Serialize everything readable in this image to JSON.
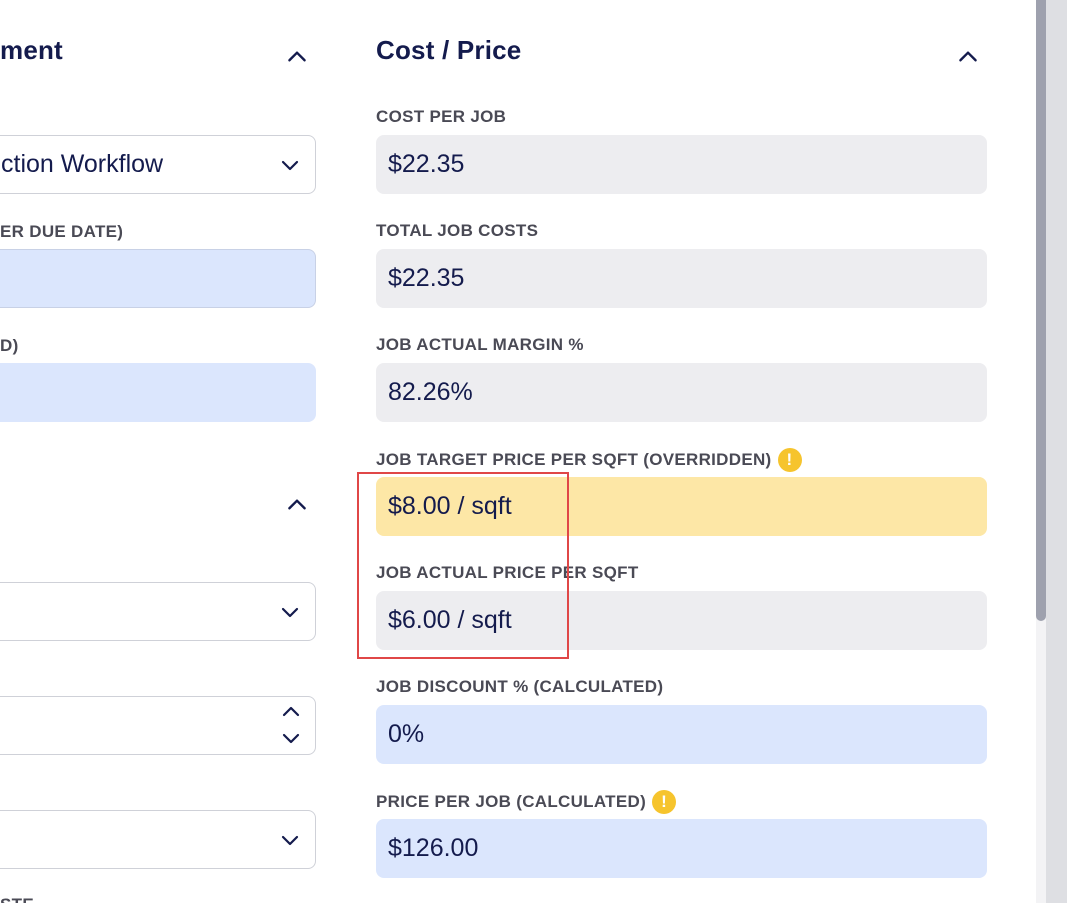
{
  "left_panel": {
    "section_title": "ment",
    "workflow_select": {
      "value": "ction Workflow"
    },
    "label_due_date": "ER DUE DATE)",
    "label_second": "D)",
    "bottom_label": "STE"
  },
  "cost_price": {
    "section_title": "Cost / Price",
    "fields": [
      {
        "label": "COST PER JOB",
        "value": "$22.35",
        "style": "gray"
      },
      {
        "label": "TOTAL JOB COSTS",
        "value": "$22.35",
        "style": "gray"
      },
      {
        "label": "JOB ACTUAL MARGIN %",
        "value": "82.26%",
        "style": "gray"
      },
      {
        "label": "JOB TARGET PRICE PER SQFT (OVERRIDDEN)",
        "value": "$8.00 / sqft",
        "style": "yellow",
        "warning": "!"
      },
      {
        "label": "JOB ACTUAL PRICE PER SQFT",
        "value": "$6.00 / sqft",
        "style": "gray"
      },
      {
        "label": "JOB DISCOUNT % (CALCULATED)",
        "value": "0%",
        "style": "blue"
      },
      {
        "label": "PRICE PER JOB (CALCULATED)",
        "value": "$126.00",
        "style": "blue",
        "warning": "!"
      }
    ]
  },
  "colors": {
    "navy_text": "#141b4d",
    "label_gray": "#4a4a55",
    "readonly_bg": "#ededf0",
    "editable_bg": "#dbe6fd",
    "overridden_bg": "#fde7a6",
    "warning": "#f6c42d",
    "highlight": "#e04747"
  },
  "icons": {
    "collapse": "chevron-up-icon",
    "dropdown": "chevron-down-icon",
    "stepper": "up-down-stepper-icon",
    "warning": "warning-circle-icon"
  }
}
